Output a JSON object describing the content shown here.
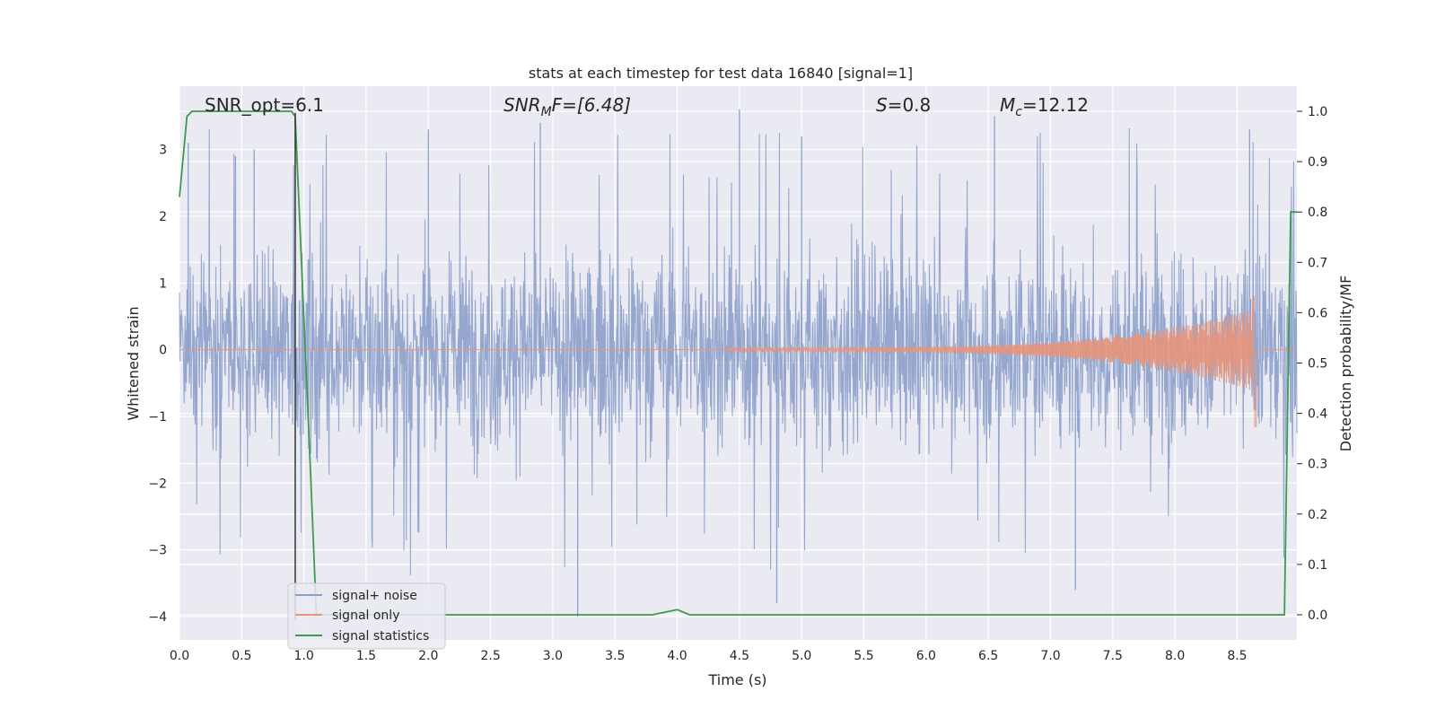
{
  "chart_data": {
    "type": "line",
    "title": "stats at each timestep for test data 16840 [signal=1]",
    "xlabel": "Time (s)",
    "ylabel": "Whitened strain",
    "ylabel_right": "Detection probability/MF",
    "xlim": [
      0.0,
      8.98
    ],
    "ylim": [
      -4.35,
      3.95
    ],
    "ylim_right": [
      -0.05,
      1.05
    ],
    "x_ticks": [
      "0.0",
      "0.5",
      "1.0",
      "1.5",
      "2.0",
      "2.5",
      "3.0",
      "3.5",
      "4.0",
      "4.5",
      "5.0",
      "5.5",
      "6.0",
      "6.5",
      "7.0",
      "7.5",
      "8.0",
      "8.5"
    ],
    "y_ticks": [
      "−4",
      "−3",
      "−2",
      "−1",
      "0",
      "1",
      "2",
      "3"
    ],
    "y_ticks_right": [
      "0.0",
      "0.1",
      "0.2",
      "0.3",
      "0.4",
      "0.5",
      "0.6",
      "0.7",
      "0.8",
      "0.9",
      "1.0"
    ],
    "grid": true,
    "background": "#eaeaf2",
    "annotations": {
      "snr_opt": "SNR_opt=6.1",
      "snr_mf_main": "SNR",
      "snr_mf_sub": "M",
      "snr_mf_rest": "F=[6.48]",
      "s_main": "S",
      "s_rest": "=0.8",
      "mc_main": "M",
      "mc_sub": "c",
      "mc_rest": "=12.12"
    },
    "vline_x": 0.93,
    "series": [
      {
        "name": "signal+ noise",
        "color": "#8da0cb",
        "axis": "left",
        "description_values": "noise band roughly between -2 and 2 with spikes to about ±3.6",
        "peak_x": [
          0.07,
          0.45,
          0.6,
          2.0,
          2.9,
          3.2,
          4.5,
          4.8,
          5.0,
          6.55,
          7.2,
          8.6
        ],
        "peak_y": [
          3.1,
          2.9,
          3.0,
          3.3,
          3.4,
          -4.0,
          3.6,
          -3.8,
          3.2,
          3.5,
          -3.6,
          3.3
        ]
      },
      {
        "name": "signal only",
        "color": "#e5957a",
        "axis": "left",
        "chirp_start": 4.4,
        "chirp_end": 8.65,
        "peak_amplitude": 0.8,
        "min_amplitude": -1.15
      },
      {
        "name": "signal statistics",
        "color": "#3d9a4f",
        "axis": "right",
        "x": [
          0.0,
          0.06,
          0.1,
          0.2,
          0.5,
          0.8,
          0.9,
          0.93,
          1.05,
          1.1,
          1.2,
          2.0,
          3.0,
          3.8,
          3.9,
          4.0,
          4.1,
          4.2,
          5.0,
          6.0,
          7.0,
          8.0,
          8.6,
          8.7,
          8.75,
          8.82,
          8.88,
          8.93,
          8.98
        ],
        "y": [
          0.83,
          0.99,
          1.0,
          1.0,
          1.0,
          1.0,
          1.0,
          0.99,
          0.3,
          0.0,
          0.0,
          0.0,
          0.0,
          0.0,
          0.005,
          0.01,
          0.0,
          0.0,
          0.0,
          0.0,
          0.0,
          0.0,
          0.0,
          0.0,
          0.0,
          0.0,
          0.0,
          0.8,
          0.8
        ]
      }
    ],
    "legend": {
      "position": "lower-left",
      "entries": [
        "signal+ noise",
        "signal only",
        "signal statistics"
      ]
    }
  }
}
